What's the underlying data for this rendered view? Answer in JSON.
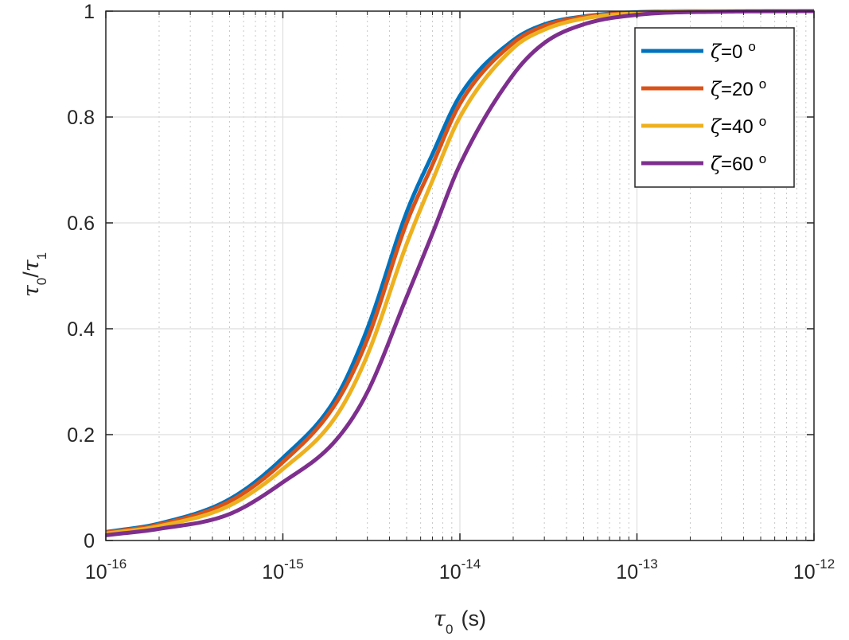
{
  "chart_data": {
    "type": "line",
    "xscale": "log",
    "xlim": [
      1e-16,
      1e-12
    ],
    "ylim": [
      0,
      1
    ],
    "grid": true,
    "minor_grid_x": true,
    "legend_position": "top-right",
    "xlabel": {
      "symbol": "τ",
      "sub": "0",
      "unit": "(s)"
    },
    "ylabel": {
      "symbol1": "τ",
      "sub1": "0",
      "slash": "/",
      "symbol2": "τ",
      "sub2": "1"
    },
    "x_ticks": [
      {
        "value": 1e-16,
        "base": "10",
        "exp": "-16"
      },
      {
        "value": 1e-15,
        "base": "10",
        "exp": "-15"
      },
      {
        "value": 1e-14,
        "base": "10",
        "exp": "-14"
      },
      {
        "value": 1e-13,
        "base": "10",
        "exp": "-13"
      },
      {
        "value": 1e-12,
        "base": "10",
        "exp": "-12"
      }
    ],
    "y_ticks": [
      {
        "value": 0,
        "label": "0"
      },
      {
        "value": 0.2,
        "label": "0.2"
      },
      {
        "value": 0.4,
        "label": "0.4"
      },
      {
        "value": 0.6,
        "label": "0.6"
      },
      {
        "value": 0.8,
        "label": "0.8"
      },
      {
        "value": 1,
        "label": "1"
      }
    ],
    "x": [
      1e-16,
      2e-16,
      5e-16,
      1e-15,
      2e-15,
      3e-15,
      5e-15,
      7e-15,
      1e-14,
      2e-14,
      3e-14,
      5e-14,
      1e-13,
      3e-13,
      1e-12
    ],
    "series": [
      {
        "symbol": "ζ",
        "name": "=0",
        "unit": "o",
        "color": "#0072BD",
        "values": [
          0.016,
          0.032,
          0.078,
          0.156,
          0.27,
          0.4,
          0.62,
          0.73,
          0.84,
          0.945,
          0.975,
          0.99,
          0.998,
          1.0,
          1.0
        ]
      },
      {
        "symbol": "ζ",
        "name": "=20",
        "unit": "o",
        "color": "#D95319",
        "values": [
          0.015,
          0.03,
          0.074,
          0.148,
          0.26,
          0.38,
          0.6,
          0.71,
          0.825,
          0.94,
          0.972,
          0.989,
          0.997,
          1.0,
          1.0
        ]
      },
      {
        "symbol": "ζ",
        "name": "=40",
        "unit": "o",
        "color": "#EDB120",
        "values": [
          0.013,
          0.027,
          0.066,
          0.135,
          0.235,
          0.35,
          0.56,
          0.68,
          0.8,
          0.93,
          0.965,
          0.986,
          0.996,
          1.0,
          1.0
        ]
      },
      {
        "symbol": "ζ",
        "name": "=60",
        "unit": "o",
        "color": "#7E2F8E",
        "values": [
          0.01,
          0.022,
          0.05,
          0.11,
          0.19,
          0.28,
          0.46,
          0.58,
          0.71,
          0.88,
          0.94,
          0.975,
          0.993,
          0.999,
          1.0
        ]
      }
    ]
  }
}
